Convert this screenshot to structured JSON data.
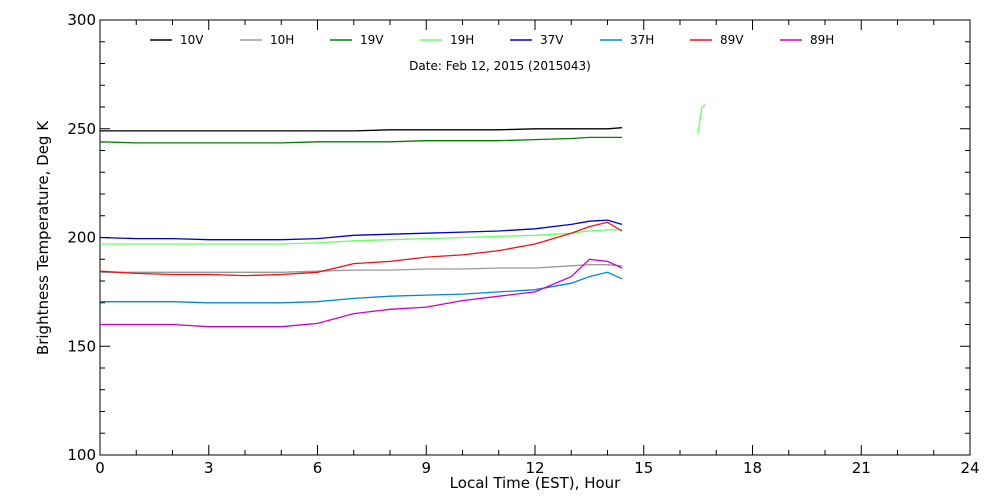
{
  "chart_data": {
    "type": "line",
    "title": "Date: Feb 12, 2015 (2015043)",
    "xlabel": "Local Time (EST), Hour",
    "ylabel": "Brightness Temperature, Deg K",
    "xlim": [
      0,
      24
    ],
    "ylim": [
      100,
      300
    ],
    "xticks": [
      0,
      3,
      6,
      9,
      12,
      15,
      18,
      21,
      24
    ],
    "yticks": [
      100,
      150,
      200,
      250,
      300
    ],
    "grid": false,
    "legend_position": "top",
    "series": [
      {
        "name": "10V",
        "color": "#000000",
        "x": [
          0,
          1,
          2,
          3,
          4,
          5,
          6,
          7,
          8,
          9,
          10,
          11,
          12,
          13,
          13.5,
          14,
          14.4
        ],
        "y": [
          249,
          249,
          249,
          249,
          249,
          249,
          249,
          249,
          249.5,
          249.5,
          249.5,
          249.5,
          250,
          250,
          250,
          250,
          250.5
        ]
      },
      {
        "name": "10H",
        "color": "#999999",
        "x": [
          0,
          1,
          2,
          3,
          4,
          5,
          6,
          7,
          8,
          9,
          10,
          11,
          12,
          13,
          13.5,
          14,
          14.4
        ],
        "y": [
          184,
          184,
          184,
          184,
          184,
          184,
          184.5,
          185,
          185,
          185.5,
          185.5,
          186,
          186,
          187,
          187.5,
          187.5,
          187
        ]
      },
      {
        "name": "19V",
        "color": "#008000",
        "x": [
          0,
          1,
          2,
          3,
          4,
          5,
          6,
          7,
          8,
          9,
          10,
          11,
          12,
          13,
          13.5,
          14,
          14.4
        ],
        "y": [
          244,
          243.5,
          243.5,
          243.5,
          243.5,
          243.5,
          244,
          244,
          244,
          244.5,
          244.5,
          244.5,
          245,
          245.5,
          246,
          246,
          246
        ]
      },
      {
        "name": "19H",
        "color": "#66ff66",
        "x": [
          0,
          1,
          2,
          3,
          4,
          5,
          6,
          7,
          8,
          9,
          10,
          11,
          12,
          13,
          13.5,
          14,
          14.4,
          16.5,
          16.6,
          16.7
        ],
        "y": [
          197,
          197,
          197,
          197,
          197,
          197,
          197.5,
          198.5,
          199,
          199.5,
          200,
          200.5,
          201,
          202,
          203,
          203.5,
          203.5,
          248,
          260,
          261
        ]
      },
      {
        "name": "37V",
        "color": "#0000cc",
        "x": [
          0,
          1,
          2,
          3,
          4,
          5,
          6,
          7,
          8,
          9,
          10,
          11,
          12,
          13,
          13.5,
          14,
          14.4
        ],
        "y": [
          200,
          199.5,
          199.5,
          199,
          199,
          199,
          199.5,
          201,
          201.5,
          202,
          202.5,
          203,
          204,
          206,
          207.5,
          208,
          206
        ]
      },
      {
        "name": "37H",
        "color": "#0088dd",
        "x": [
          0,
          1,
          2,
          3,
          4,
          5,
          6,
          7,
          8,
          9,
          10,
          11,
          12,
          13,
          13.5,
          14,
          14.4
        ],
        "y": [
          170.5,
          170.5,
          170.5,
          170,
          170,
          170,
          170.5,
          172,
          173,
          173.5,
          174,
          175,
          176,
          179,
          182,
          184,
          181
        ]
      },
      {
        "name": "89V",
        "color": "#ee1111",
        "x": [
          0,
          1,
          2,
          3,
          4,
          5,
          6,
          7,
          8,
          9,
          10,
          11,
          12,
          13,
          13.5,
          14,
          14.4
        ],
        "y": [
          184.5,
          183.5,
          183,
          183,
          182.5,
          183,
          184,
          188,
          189,
          191,
          192,
          194,
          197,
          202,
          205,
          207,
          203
        ]
      },
      {
        "name": "89H",
        "color": "#cc00cc",
        "x": [
          0,
          1,
          2,
          3,
          4,
          5,
          6,
          7,
          8,
          9,
          10,
          11,
          12,
          13,
          13.5,
          14,
          14.4
        ],
        "y": [
          160,
          160,
          160,
          159,
          159,
          159,
          160.5,
          165,
          167,
          168,
          171,
          173,
          175,
          182,
          190,
          189,
          186
        ]
      }
    ]
  }
}
